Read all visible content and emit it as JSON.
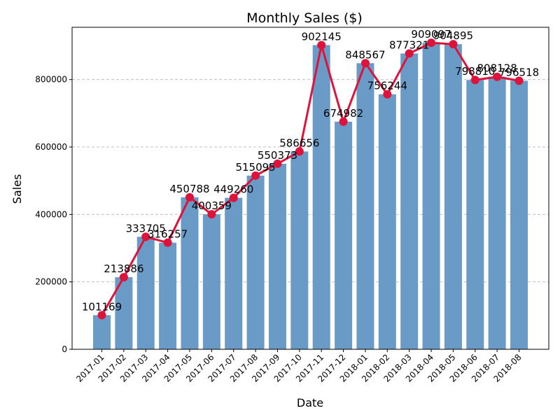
{
  "chart_data": {
    "type": "bar",
    "title": "Monthly Sales ($)",
    "xlabel": "Date",
    "ylabel": "Sales",
    "ylim": [
      0,
      955000
    ],
    "yticks": [
      0,
      200000,
      400000,
      600000,
      800000
    ],
    "grid": "y-dashed",
    "categories": [
      "2017-01",
      "2017-02",
      "2017-03",
      "2017-04",
      "2017-05",
      "2017-06",
      "2017-07",
      "2017-08",
      "2017-09",
      "2017-10",
      "2017-11",
      "2017-12",
      "2018-01",
      "2018-02",
      "2018-03",
      "2018-04",
      "2018-05",
      "2018-06",
      "2018-07",
      "2018-08"
    ],
    "values": [
      101169,
      213886,
      333705,
      316257,
      450788,
      400359,
      449260,
      515095,
      550373,
      586656,
      902145,
      674982,
      848567,
      756244,
      877321,
      909097,
      904895,
      798810,
      808128,
      796518
    ],
    "bar_color": "#6a9bc6",
    "line_color": "#dc143c",
    "line_overlay": true,
    "data_labels": true
  }
}
